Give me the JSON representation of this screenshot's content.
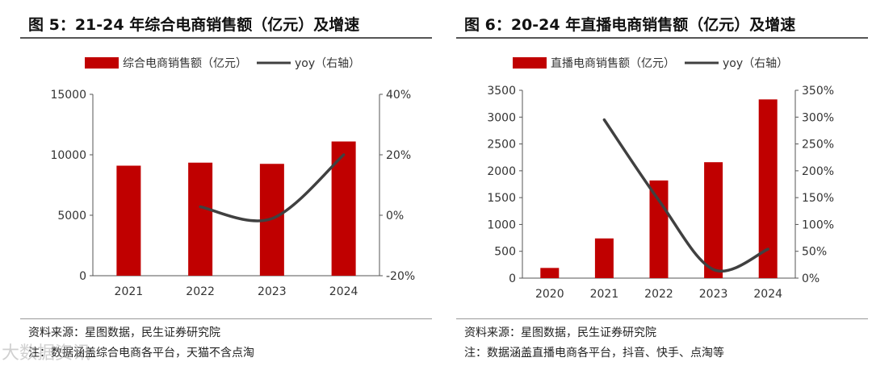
{
  "colors": {
    "bar": "#c00000",
    "line": "#404040",
    "axis": "#555555"
  },
  "watermark": "大数据资讯",
  "panels": [
    {
      "title": "图 5：21-24 年综合电商销售额（亿元）及增速",
      "source": "资料来源：星图数据，民生证券研究院",
      "note": "注：数据涵盖综合电商各平台，天猫不含点淘",
      "chart_data": {
        "type": "bar",
        "categories": [
          "2021",
          "2022",
          "2023",
          "2024"
        ],
        "series": [
          {
            "name": "综合电商销售额（亿元）",
            "type": "bar",
            "axis": "left",
            "values": [
              9100,
              9350,
              9250,
              11100
            ]
          },
          {
            "name": "yoy（右轴）",
            "type": "line",
            "axis": "right",
            "values": [
              null,
              2.8,
              -1.1,
              20.0
            ]
          }
        ],
        "y_left": {
          "min": 0,
          "max": 15000,
          "ticks": [
            0,
            5000,
            10000,
            15000
          ],
          "tick_labels": [
            "0",
            "5000",
            "10000",
            "15000"
          ]
        },
        "y_right": {
          "min": -20,
          "max": 40,
          "ticks": [
            -20,
            0,
            20,
            40
          ],
          "tick_labels": [
            "-20%",
            "0%",
            "20%",
            "40%"
          ]
        },
        "legend": {
          "bar": "综合电商销售额（亿元）",
          "line": "yoy（右轴）"
        }
      }
    },
    {
      "title": "图 6：20-24 年直播电商销售额（亿元）及增速",
      "source": "资料来源：星图数据，民生证券研究院",
      "note": "注：数据涵盖直播电商各平台，抖音、快手、点淘等",
      "chart_data": {
        "type": "bar",
        "categories": [
          "2020",
          "2021",
          "2022",
          "2023",
          "2024"
        ],
        "series": [
          {
            "name": "直播电商销售额（亿元）",
            "type": "bar",
            "axis": "left",
            "values": [
              190,
              740,
              1820,
              2160,
              3330
            ]
          },
          {
            "name": "yoy（右轴）",
            "type": "line",
            "axis": "right",
            "values": [
              null,
              295,
              145,
              16,
              54
            ]
          }
        ],
        "y_left": {
          "min": 0,
          "max": 3500,
          "ticks": [
            0,
            500,
            1000,
            1500,
            2000,
            2500,
            3000,
            3500
          ],
          "tick_labels": [
            "0",
            "500",
            "1000",
            "1500",
            "2000",
            "2500",
            "3000",
            "3500"
          ]
        },
        "y_right": {
          "min": 0,
          "max": 350,
          "ticks": [
            0,
            50,
            100,
            150,
            200,
            250,
            300,
            350
          ],
          "tick_labels": [
            "0%",
            "50%",
            "100%",
            "150%",
            "200%",
            "250%",
            "300%",
            "350%"
          ]
        },
        "legend": {
          "bar": "直播电商销售额（亿元）",
          "line": "yoy（右轴）"
        }
      }
    }
  ]
}
